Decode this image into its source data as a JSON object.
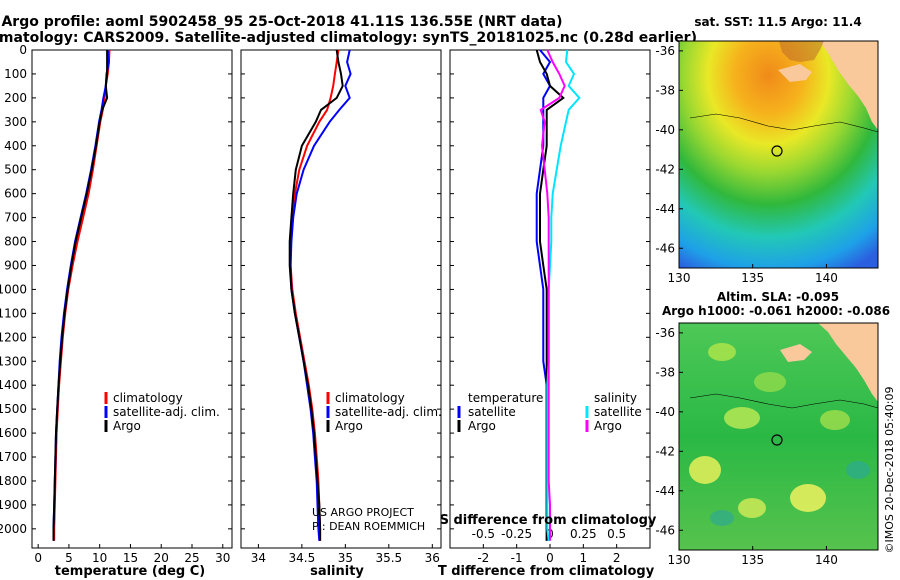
{
  "title_line1": "Argo profile: aoml 5902458_95 25-Oct-2018 41.11S 136.55E (NRT data)",
  "title_line2": "Climatology: CARS2009. Satellite-adjusted climatology: synTS_20181025.nc (0.28d earlier)",
  "project_label": "US ARGO PROJECT",
  "pi_label": "PI: DEAN ROEMMICH",
  "timestamp": "©IMOS 20-Dec-2018 05:40:09",
  "map_top_title": "sat. SST: 11.5 Argo: 11.4",
  "map_bottom_title1": "Altim. SLA: -0.095",
  "map_bottom_title2": "Argo h1000: -0.061 h2000: -0.086",
  "colors": {
    "climatology": "#ff0000",
    "satellite": "#0000ff",
    "argo": "#000000",
    "salinity_satellite": "#00e5ff",
    "salinity_argo": "#ff00ff",
    "land": "#f9c99b"
  },
  "chart_data": [
    {
      "type": "line",
      "panel": "temperature",
      "xlabel": "temperature (deg C)",
      "ylabel": "",
      "xlim": [
        -1,
        31.5
      ],
      "ylim": [
        2080,
        0
      ],
      "xticks": [
        "0",
        "5",
        "10",
        "15",
        "20",
        "25",
        "30"
      ],
      "yticks": [
        "0",
        "100",
        "200",
        "300",
        "400",
        "500",
        "600",
        "700",
        "800",
        "900",
        "1000",
        "1100",
        "1200",
        "1300",
        "1400",
        "1500",
        "1600",
        "1700",
        "1800",
        "1900",
        "2000"
      ],
      "depth": [
        0,
        50,
        100,
        150,
        200,
        250,
        300,
        400,
        500,
        600,
        700,
        800,
        900,
        1000,
        1100,
        1200,
        1300,
        1400,
        1500,
        1600,
        1700,
        1800,
        1900,
        2000,
        2050
      ],
      "legend": [
        "climatology",
        "satellite-adj. clim.",
        "Argo"
      ],
      "series": [
        {
          "name": "climatology",
          "values": [
            11.6,
            11.5,
            11.3,
            11.0,
            10.8,
            10.5,
            10.1,
            9.5,
            8.9,
            8.2,
            7.3,
            6.4,
            5.6,
            4.9,
            4.4,
            4.0,
            3.7,
            3.4,
            3.2,
            3.0,
            2.9,
            2.8,
            2.7,
            2.6,
            2.6
          ]
        },
        {
          "name": "satellite-adj. clim.",
          "values": [
            11.3,
            11.5,
            11.1,
            11.0,
            10.6,
            10.3,
            9.9,
            9.3,
            8.6,
            7.8,
            6.9,
            6.0,
            5.3,
            4.7,
            4.2,
            3.8,
            3.5,
            3.3,
            3.1,
            2.9,
            2.8,
            2.7,
            2.6,
            2.5,
            2.5
          ]
        },
        {
          "name": "Argo",
          "values": [
            11.2,
            11.2,
            11.2,
            11.0,
            11.2,
            10.4,
            10.0,
            9.4,
            8.7,
            7.9,
            7.0,
            6.1,
            5.4,
            4.8,
            4.3,
            3.9,
            3.6,
            3.3,
            3.1,
            2.9,
            2.8,
            2.7,
            2.6,
            2.5,
            2.5
          ]
        }
      ]
    },
    {
      "type": "line",
      "panel": "salinity",
      "xlabel": "salinity",
      "ylabel": "",
      "xlim": [
        33.8,
        36.1
      ],
      "ylim": [
        2080,
        0
      ],
      "xticks": [
        "34",
        "34.5",
        "35",
        "35.5",
        "36"
      ],
      "depth": [
        0,
        50,
        100,
        150,
        200,
        250,
        300,
        400,
        500,
        600,
        700,
        800,
        900,
        1000,
        1100,
        1200,
        1300,
        1400,
        1500,
        1600,
        1700,
        1800,
        1900,
        2000,
        2050
      ],
      "legend": [
        "climatology",
        "satellite-adj. clim.",
        "Argo"
      ],
      "series": [
        {
          "name": "climatology",
          "values": [
            34.92,
            34.9,
            34.88,
            34.86,
            34.83,
            34.79,
            34.7,
            34.56,
            34.47,
            34.42,
            34.39,
            34.37,
            34.37,
            34.39,
            34.43,
            34.48,
            34.53,
            34.58,
            34.62,
            34.65,
            34.67,
            34.69,
            34.7,
            34.71,
            34.71
          ]
        },
        {
          "name": "satellite-adj. clim.",
          "values": [
            35.05,
            35.02,
            35.06,
            35.0,
            35.05,
            34.93,
            34.82,
            34.64,
            34.52,
            34.44,
            34.4,
            34.38,
            34.37,
            34.38,
            34.42,
            34.47,
            34.52,
            34.56,
            34.6,
            34.63,
            34.65,
            34.67,
            34.68,
            34.69,
            34.7
          ]
        },
        {
          "name": "Argo",
          "values": [
            34.9,
            34.92,
            34.95,
            34.97,
            34.9,
            34.72,
            34.66,
            34.5,
            34.43,
            34.4,
            34.38,
            34.36,
            34.36,
            34.38,
            34.42,
            34.47,
            34.52,
            34.57,
            34.61,
            34.64,
            34.66,
            34.68,
            34.7,
            34.71,
            34.71
          ]
        }
      ]
    },
    {
      "type": "line",
      "panel": "difference from climatology",
      "xlabel": "T difference from climatology",
      "x2label": "S difference from climatology",
      "xlim": [
        -3,
        3
      ],
      "ylim": [
        2080,
        0
      ],
      "xticks": [
        "-2",
        "-1",
        "0",
        "1",
        "2"
      ],
      "x2ticks": [
        "-0.5",
        "-0.25",
        "0",
        "0.25",
        "0.5"
      ],
      "depth": [
        0,
        50,
        100,
        150,
        200,
        250,
        300,
        400,
        500,
        600,
        700,
        800,
        900,
        1000,
        1100,
        1200,
        1300,
        1400,
        1500,
        1600,
        1700,
        1800,
        1900,
        2000,
        2050
      ],
      "legend": [
        "temperature",
        "satellite",
        "Argo",
        "salinity",
        "satellite",
        "Argo"
      ],
      "series": [
        {
          "name": "temperature satellite",
          "values": [
            -0.3,
            0.0,
            -0.2,
            0.0,
            -0.2,
            -0.2,
            -0.2,
            -0.2,
            -0.3,
            -0.4,
            -0.4,
            -0.4,
            -0.3,
            -0.2,
            -0.2,
            -0.2,
            -0.2,
            -0.1,
            -0.1,
            -0.1,
            -0.1,
            -0.1,
            -0.1,
            -0.1,
            -0.1
          ]
        },
        {
          "name": "temperature Argo",
          "values": [
            -0.4,
            -0.3,
            -0.1,
            0.0,
            0.4,
            -0.1,
            -0.1,
            -0.1,
            -0.2,
            -0.3,
            -0.3,
            -0.3,
            -0.2,
            -0.1,
            -0.1,
            -0.1,
            -0.1,
            -0.1,
            -0.1,
            -0.1,
            -0.1,
            -0.1,
            -0.1,
            -0.1,
            -0.1
          ]
        },
        {
          "name": "salinity satellite",
          "values": [
            0.13,
            0.12,
            0.18,
            0.14,
            0.22,
            0.14,
            0.12,
            0.08,
            0.05,
            0.02,
            0.01,
            0.01,
            0.0,
            -0.01,
            -0.01,
            -0.01,
            -0.01,
            -0.02,
            -0.02,
            -0.02,
            -0.02,
            -0.02,
            -0.02,
            -0.02,
            -0.01
          ]
        },
        {
          "name": "salinity Argo",
          "values": [
            -0.02,
            0.02,
            0.07,
            0.11,
            0.07,
            -0.07,
            -0.04,
            -0.06,
            -0.04,
            -0.02,
            -0.01,
            -0.01,
            -0.01,
            -0.01,
            -0.01,
            -0.01,
            -0.01,
            -0.01,
            -0.01,
            -0.01,
            -0.01,
            -0.01,
            0.0,
            0.0,
            0.0
          ]
        }
      ]
    },
    {
      "type": "heatmap",
      "panel": "SST map",
      "title": "sat. SST: 11.5 Argo: 11.4",
      "xticks": [
        "130",
        "135",
        "140"
      ],
      "yticks": [
        "-36",
        "-38",
        "-40",
        "-42",
        "-44",
        "-46"
      ],
      "xlim": [
        130,
        143.5
      ],
      "ylim": [
        -47,
        -35.5
      ],
      "marker": {
        "lon": 136.55,
        "lat": -41.11
      }
    },
    {
      "type": "heatmap",
      "panel": "SLA map",
      "title": "Altim. SLA: -0.095",
      "subtitle": "Argo h1000: -0.061 h2000: -0.086",
      "xticks": [
        "130",
        "135",
        "140"
      ],
      "yticks": [
        "-36",
        "-38",
        "-40",
        "-42",
        "-44",
        "-46"
      ],
      "xlim": [
        130,
        143.5
      ],
      "ylim": [
        -47,
        -35.5
      ],
      "marker": {
        "lon": 136.55,
        "lat": -41.11
      }
    }
  ]
}
